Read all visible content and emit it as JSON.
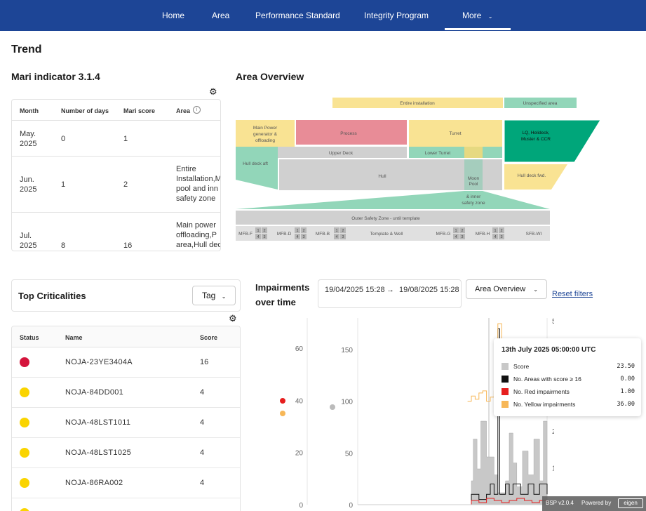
{
  "nav": {
    "items": [
      {
        "label": "Home"
      },
      {
        "label": "Area"
      },
      {
        "label": "Performance Standard"
      },
      {
        "label": "Integrity Program"
      },
      {
        "label": "More",
        "active": true
      }
    ],
    "background": "#1d4596"
  },
  "page_title": "Trend",
  "mari": {
    "title": "Mari indicator 3.1.4",
    "columns": [
      "Month",
      "Number of days",
      "Mari score",
      "Area"
    ],
    "rows": [
      {
        "month": "May.\n2025",
        "days": "0",
        "score": "1",
        "area": ""
      },
      {
        "month": "Jun.\n2025",
        "days": "1",
        "score": "2",
        "area": "Entire\nInstallation,M\npool and inn\nsafety zone"
      },
      {
        "month": "Jul.\n2025",
        "days": "8",
        "score": "16",
        "area": "Main power \noffloading,P\narea,Hull dec"
      }
    ]
  },
  "area_overview": {
    "title": "Area Overview",
    "labels": {
      "entire": "Entire installation",
      "unspecified": "Unspecified area",
      "main_power": [
        "Main Power",
        "generator &",
        "offloading"
      ],
      "process": "Process",
      "turret": "Turret",
      "lq": [
        "LQ, Helideck,",
        "Muster & CCR"
      ],
      "upper_deck": "Upper Deck",
      "lower_turret": "Lower Turret",
      "hull_aft": "Hull deck aft",
      "hull": "Hull",
      "moon_pool": [
        "Moon",
        "Pool"
      ],
      "hull_fwd": "Hull deck fwd.",
      "inner_safety": [
        "& inner",
        "safety zone"
      ],
      "outer_safety": "Outer Safety Zone - until template",
      "mfb_f": "MFB-F",
      "mfb_d": "MFB-D",
      "mfb_b": "MFB-B",
      "template": "Template & Well",
      "mfb_g": "MFB-G",
      "mfb_h": "MFB-H",
      "sfb_wi": "SFB-WI",
      "mini": [
        "1",
        "2",
        "4",
        "3"
      ]
    },
    "colors": {
      "yellow": "#f9e393",
      "green": "#92d6b9",
      "teal": "#00a67a",
      "red": "#e88c97",
      "gray": "#d0d0d0",
      "lightgray": "#e6e6e6"
    }
  },
  "top_criticalities": {
    "title": "Top Criticalities",
    "tag_button": "Tag",
    "columns": [
      "Status",
      "Name",
      "Score"
    ],
    "rows": [
      {
        "name": "NOJA-23YE3404A",
        "score": "16",
        "status_color": "#d4143c"
      },
      {
        "name": "NOJA-84DD001",
        "score": "4",
        "status_color": "#fad400"
      },
      {
        "name": "NOJA-48LST1011",
        "score": "4",
        "status_color": "#fad400"
      },
      {
        "name": "NOJA-48LST1025",
        "score": "4",
        "status_color": "#fad400"
      },
      {
        "name": "NOJA-86RA002",
        "score": "4",
        "status_color": "#fad400"
      },
      {
        "name": "",
        "score": "",
        "status_color": "#fad400"
      }
    ]
  },
  "impairments": {
    "title_line1": "Impairments",
    "title_line2": "over time",
    "date_from": "19/04/2025 15:28",
    "date_arrow": "→",
    "date_to": "19/08/2025 15:28",
    "dropdown": "Area Overview",
    "reset": "Reset filters"
  },
  "chart_data": {
    "type": "line",
    "y_left_outer": {
      "ticks": [
        "0",
        "20",
        "40",
        "60"
      ],
      "range": [
        0,
        60
      ]
    },
    "y_left_inner": {
      "ticks": [
        "0",
        "50",
        "100",
        "150"
      ],
      "range": [
        0,
        150
      ]
    },
    "y_right": {
      "ticks": [
        "1",
        "2",
        "5"
      ],
      "range": [
        0,
        5
      ]
    },
    "series": [
      {
        "name": "Score",
        "color": "#c8c8c8",
        "kind": "area",
        "points": [
          [
            0.58,
            0
          ],
          [
            0.6,
            20
          ],
          [
            0.61,
            55
          ],
          [
            0.63,
            30
          ],
          [
            0.65,
            70
          ],
          [
            0.68,
            40
          ],
          [
            0.72,
            25
          ],
          [
            0.74,
            10
          ],
          [
            0.78,
            20
          ],
          [
            0.8,
            60
          ],
          [
            0.82,
            35
          ],
          [
            0.84,
            15
          ],
          [
            0.87,
            45
          ],
          [
            0.9,
            25
          ],
          [
            0.93,
            55
          ],
          [
            0.96,
            20
          ],
          [
            0.98,
            70
          ],
          [
            1.0,
            40
          ]
        ]
      },
      {
        "name": "No. Areas with score ≥ 16",
        "color": "#111111",
        "kind": "line",
        "points": [
          [
            0.58,
            0
          ],
          [
            0.6,
            10
          ],
          [
            0.62,
            10
          ],
          [
            0.64,
            5
          ],
          [
            0.68,
            10
          ],
          [
            0.7,
            20
          ],
          [
            0.72,
            10
          ],
          [
            0.74,
            170
          ],
          [
            0.75,
            10
          ],
          [
            0.78,
            20
          ],
          [
            0.8,
            10
          ],
          [
            0.82,
            20
          ],
          [
            0.86,
            10
          ],
          [
            0.9,
            20
          ],
          [
            0.93,
            10
          ],
          [
            0.96,
            20
          ],
          [
            1.0,
            10
          ]
        ]
      },
      {
        "name": "No. Red impairments",
        "color": "#e61e1e",
        "kind": "line",
        "points": [
          [
            0.58,
            0
          ],
          [
            0.6,
            2
          ],
          [
            0.64,
            1
          ],
          [
            0.68,
            3
          ],
          [
            0.72,
            2
          ],
          [
            0.76,
            1
          ],
          [
            0.8,
            2
          ],
          [
            0.84,
            3
          ],
          [
            0.88,
            2
          ],
          [
            0.92,
            1
          ],
          [
            0.96,
            2
          ],
          [
            1.0,
            1
          ]
        ]
      },
      {
        "name": "No. Yellow impairments",
        "color": "#f7b757",
        "kind": "line",
        "points": [
          [
            0.58,
            100
          ],
          [
            0.6,
            105
          ],
          [
            0.62,
            102
          ],
          [
            0.64,
            108
          ],
          [
            0.66,
            110
          ],
          [
            0.68,
            100
          ],
          [
            0.7,
            104
          ],
          [
            0.72,
            110
          ],
          [
            0.74,
            175
          ],
          [
            0.76,
            108
          ],
          [
            0.78,
            102
          ],
          [
            0.8,
            106
          ],
          [
            0.83,
            98
          ],
          [
            0.86,
            104
          ],
          [
            0.9,
            96
          ],
          [
            0.94,
            92
          ],
          [
            0.97,
            88
          ],
          [
            1.0,
            94
          ]
        ]
      }
    ],
    "legend_dots": [
      {
        "color": "#e61e1e"
      },
      {
        "color": "#f7b757"
      },
      {
        "color": "#bbbbbb"
      }
    ],
    "grid": false
  },
  "tooltip": {
    "title": "13th July 2025 05:00:00 UTC",
    "rows": [
      {
        "label": "Score",
        "value": "23.50",
        "color": "#c8c8c8"
      },
      {
        "label": "No. Areas with score ≥ 16",
        "value": "0.00",
        "color": "#111111"
      },
      {
        "label": "No. Red impairments",
        "value": "1.00",
        "color": "#e61e1e"
      },
      {
        "label": "No. Yellow impairments",
        "value": "36.00",
        "color": "#f7b757"
      }
    ]
  },
  "footer": {
    "version": "BSP v2.0.4",
    "powered": "Powered by",
    "brand": "eigen"
  }
}
